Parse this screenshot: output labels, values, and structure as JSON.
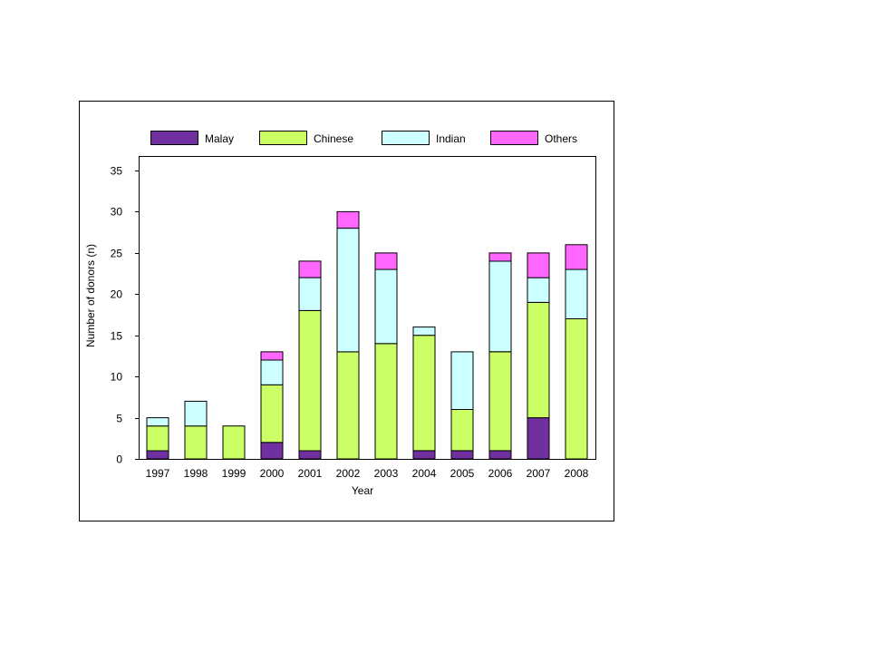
{
  "chart_data": {
    "type": "bar",
    "stacked": true,
    "title": "",
    "xlabel": "Year",
    "ylabel": "Number of donors (n)",
    "ylim": [
      0,
      35
    ],
    "yticks": [
      "0",
      "5",
      "10",
      "15",
      "20",
      "25",
      "30",
      "35"
    ],
    "categories": [
      "1997",
      "1998",
      "1999",
      "2000",
      "2001",
      "2002",
      "2003",
      "2004",
      "2005",
      "2006",
      "2007",
      "2008"
    ],
    "series": [
      {
        "name": "Malay",
        "color": "#7030A0",
        "values": [
          1,
          0,
          0,
          2,
          1,
          0,
          0,
          1,
          1,
          1,
          5,
          0
        ]
      },
      {
        "name": "Chinese",
        "color": "#CCFF66",
        "values": [
          3,
          4,
          4,
          7,
          17,
          13,
          14,
          14,
          5,
          12,
          14,
          17
        ]
      },
      {
        "name": "Indian",
        "color": "#CCFFFF",
        "values": [
          1,
          3,
          0,
          3,
          4,
          15,
          9,
          1,
          7,
          11,
          3,
          6
        ]
      },
      {
        "name": "Others",
        "color": "#FF66FF",
        "values": [
          0,
          0,
          0,
          1,
          2,
          2,
          2,
          0,
          0,
          1,
          3,
          3
        ]
      }
    ],
    "grid": false,
    "legend_position": "top"
  }
}
